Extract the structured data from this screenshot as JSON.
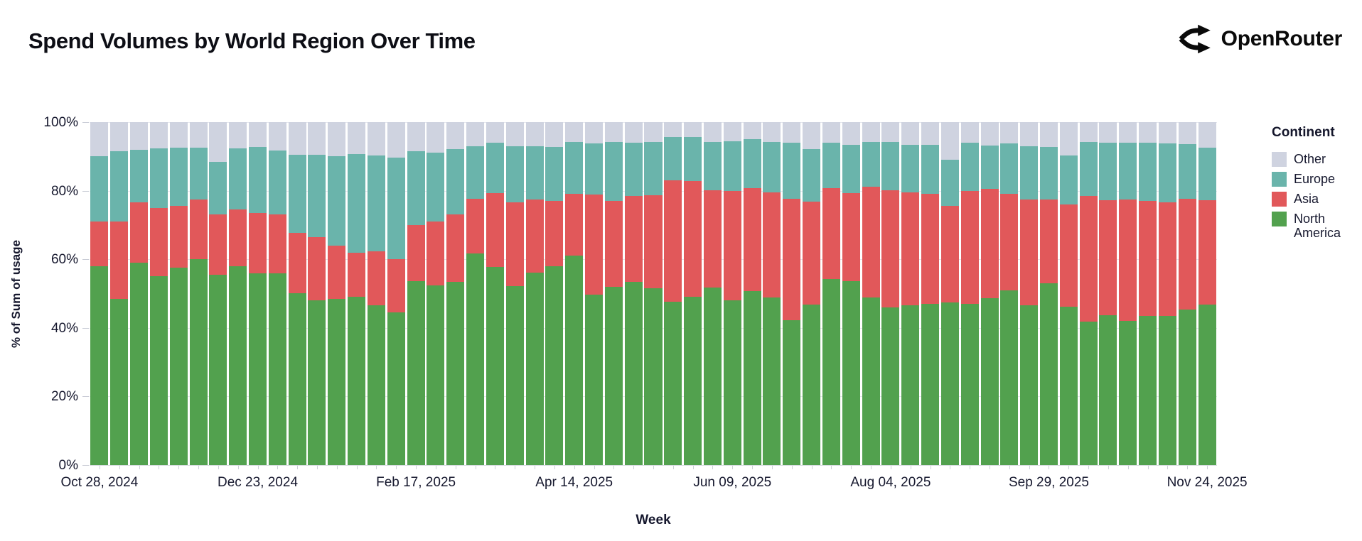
{
  "header": {
    "title": "Spend Volumes by World Region Over Time",
    "brand": "OpenRouter"
  },
  "axes": {
    "x_title": "Week",
    "y_title": "% of Sum of usage",
    "y_tick_labels": [
      "0%",
      "20%",
      "40%",
      "60%",
      "80%",
      "100%"
    ],
    "x_tick_labels": [
      "Oct 28, 2024",
      "Dec 23, 2024",
      "Feb 17, 2025",
      "Apr 14, 2025",
      "Jun 09, 2025",
      "Aug 04, 2025",
      "Sep 29, 2025",
      "Nov 24, 2025"
    ]
  },
  "legend": {
    "title": "Continent",
    "items": [
      {
        "label": "Other",
        "color": "#CFD3E0"
      },
      {
        "label": "Europe",
        "color": "#6AB4AB"
      },
      {
        "label": "Asia",
        "color": "#E1585A"
      },
      {
        "label": "North America",
        "color": "#52A14E"
      }
    ]
  },
  "chart_data": {
    "type": "bar",
    "stacked": true,
    "percent": true,
    "title": "Spend Volumes by World Region Over Time",
    "xlabel": "Week",
    "ylabel": "% of Sum of usage",
    "ylim": [
      0,
      100
    ],
    "grid": "horizontal",
    "legend_position": "right",
    "legend_title": "Continent",
    "x_tick_every": 8,
    "x_tick_labels": [
      "Oct 28, 2024",
      "Dec 23, 2024",
      "Feb 17, 2025",
      "Apr 14, 2025",
      "Jun 09, 2025",
      "Aug 04, 2025",
      "Sep 29, 2025",
      "Nov 24, 2025"
    ],
    "x": [
      "2024-10-28",
      "2024-11-04",
      "2024-11-11",
      "2024-11-18",
      "2024-11-25",
      "2024-12-02",
      "2024-12-09",
      "2024-12-16",
      "2024-12-23",
      "2024-12-30",
      "2025-01-06",
      "2025-01-13",
      "2025-01-20",
      "2025-01-27",
      "2025-02-03",
      "2025-02-10",
      "2025-02-17",
      "2025-02-24",
      "2025-03-03",
      "2025-03-10",
      "2025-03-17",
      "2025-03-24",
      "2025-03-31",
      "2025-04-07",
      "2025-04-14",
      "2025-04-21",
      "2025-04-28",
      "2025-05-05",
      "2025-05-12",
      "2025-05-19",
      "2025-05-26",
      "2025-06-02",
      "2025-06-09",
      "2025-06-16",
      "2025-06-23",
      "2025-06-30",
      "2025-07-07",
      "2025-07-14",
      "2025-07-21",
      "2025-07-28",
      "2025-08-04",
      "2025-08-11",
      "2025-08-18",
      "2025-08-25",
      "2025-09-01",
      "2025-09-08",
      "2025-09-15",
      "2025-09-22",
      "2025-09-29",
      "2025-10-06",
      "2025-10-13",
      "2025-10-20",
      "2025-10-27",
      "2025-11-03",
      "2025-11-10",
      "2025-11-17",
      "2025-11-24"
    ],
    "stack_order_bottom_to_top": [
      "North America",
      "Asia",
      "Europe",
      "Other"
    ],
    "series": [
      {
        "name": "North America",
        "color": "#52A14E",
        "values": [
          58,
          48.5,
          59,
          55,
          57.5,
          60,
          55.5,
          58,
          56,
          55.8,
          50,
          48,
          48.5,
          49,
          46.6,
          44.6,
          53.6,
          52.4,
          53.4,
          61.6,
          57.7,
          52.2,
          56.1,
          57.9,
          61,
          49.7,
          52,
          53.5,
          51.5,
          47.7,
          49,
          51.7,
          48.1,
          50.8,
          48.8,
          42.2,
          46.7,
          54.3,
          53.6,
          48.8,
          46,
          46.6,
          46.9,
          47.5,
          47,
          48.6,
          51,
          46.6,
          52.9,
          46.2,
          41.9,
          43.6,
          42,
          43.4,
          43.5,
          45.3,
          46.8
        ]
      },
      {
        "name": "Asia",
        "color": "#E1585A",
        "values": [
          13,
          22.5,
          17.5,
          20,
          18,
          17.5,
          17.5,
          16.5,
          17.5,
          17.2,
          17.8,
          18.5,
          15.5,
          13,
          15.8,
          15.4,
          16.4,
          18.6,
          19.7,
          16.1,
          21.6,
          24.5,
          21.3,
          19.1,
          18.1,
          29.2,
          25,
          25,
          27.1,
          35.3,
          33.9,
          28.4,
          31.9,
          30,
          30.6,
          35.5,
          30.2,
          26.5,
          25.7,
          32.4,
          34.1,
          32.8,
          32.2,
          28,
          32.9,
          31.9,
          28,
          30.9,
          24.5,
          29.8,
          36.5,
          33.6,
          35.5,
          33.7,
          33,
          32.4,
          30.4
        ]
      },
      {
        "name": "Europe",
        "color": "#6AB4AB",
        "values": [
          19,
          20.5,
          15.5,
          17.3,
          17,
          15,
          15.5,
          17.9,
          19.2,
          18.8,
          22.7,
          24,
          26,
          28.7,
          27.9,
          29.7,
          21.5,
          20,
          19.1,
          15.2,
          14.6,
          16.2,
          15.6,
          15.8,
          15,
          14.8,
          17.1,
          15.5,
          15.5,
          12.7,
          12.8,
          14.2,
          14.4,
          14.3,
          14.9,
          16.2,
          15.3,
          13.1,
          14.1,
          13.1,
          14,
          14,
          14.3,
          13.5,
          14,
          12.7,
          14.7,
          15.5,
          15.4,
          14.3,
          15.7,
          16.7,
          16.5,
          16.9,
          17.3,
          15.9,
          15.4
        ]
      },
      {
        "name": "Other",
        "color": "#CFD3E0",
        "values": [
          10,
          8.5,
          8,
          7.7,
          7.5,
          7.5,
          11.5,
          7.6,
          7.3,
          8.2,
          9.5,
          9.5,
          10,
          9.3,
          9.7,
          10.3,
          8.5,
          9,
          7.8,
          7.1,
          6.1,
          7.1,
          7,
          7.2,
          5.9,
          6.3,
          5.9,
          6,
          5.9,
          4.3,
          4.3,
          5.7,
          5.6,
          4.9,
          5.7,
          6.1,
          7.8,
          6.1,
          6.6,
          5.7,
          5.9,
          6.6,
          6.6,
          11,
          6.1,
          6.8,
          6.3,
          7,
          7.2,
          9.7,
          5.9,
          6.1,
          6,
          6,
          6.2,
          6.4,
          7.4
        ]
      }
    ]
  }
}
